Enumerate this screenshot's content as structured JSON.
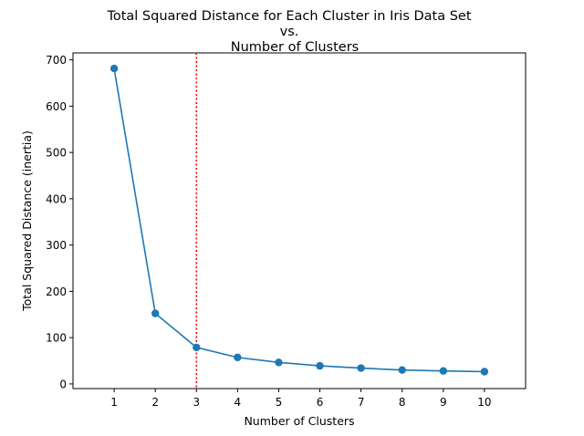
{
  "chart_data": {
    "type": "line",
    "title_lines": [
      "Total Squared Distance for Each Cluster in Iris Data Set",
      "vs.",
      "Number of Clusters"
    ],
    "xlabel": "Number of Clusters",
    "ylabel": "Total Squared Distance (inertia)",
    "x": [
      1,
      2,
      3,
      4,
      5,
      6,
      7,
      8,
      9,
      10
    ],
    "series": [
      {
        "values": [
          681.37,
          152.35,
          78.86,
          57.26,
          46.45,
          39.04,
          34.3,
          30.06,
          28.0,
          26.5
        ]
      }
    ],
    "xlim": [
      0,
      11
    ],
    "ylim": [
      -10,
      715
    ],
    "xticks": [
      1,
      2,
      3,
      4,
      5,
      6,
      7,
      8,
      9,
      10
    ],
    "yticks": [
      0,
      100,
      200,
      300,
      400,
      500,
      600,
      700
    ],
    "vline": {
      "x": 3,
      "style": "dotted",
      "color": "#ff0000"
    },
    "grid": false,
    "legend": "none",
    "colors": {
      "series": "#1f77b4",
      "vline": "#ff0000"
    }
  }
}
